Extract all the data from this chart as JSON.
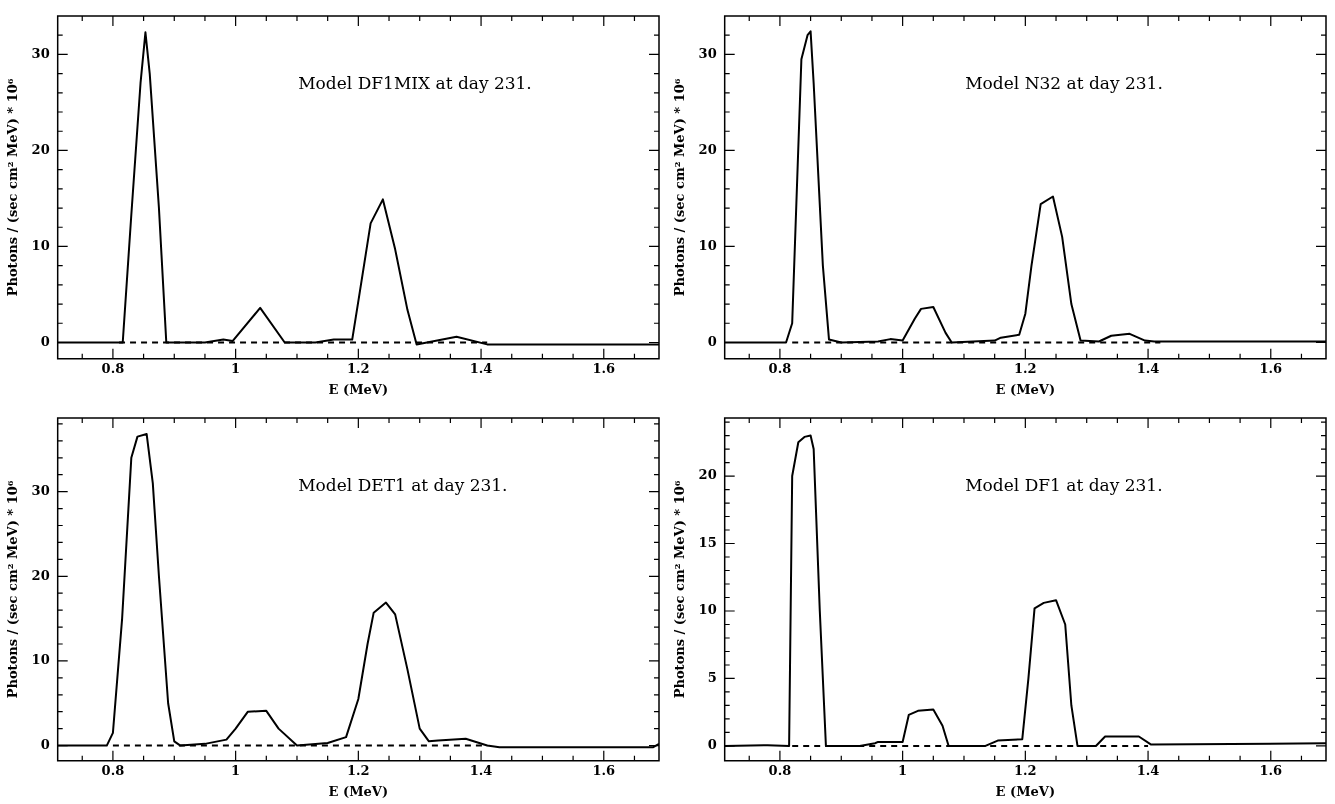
{
  "chart_data": [
    {
      "type": "line",
      "annotations": [
        "Model DF1MIX at day 231."
      ],
      "xlabel": "E (MeV)",
      "ylabel": "Photons / (sec cm² MeV) * 10⁶",
      "xlim": [
        0.71,
        1.69
      ],
      "ylim": [
        -1.7,
        34
      ],
      "xticks": [
        {
          "value": 0.75,
          "label": null
        },
        0.8,
        {
          "value": 0.85,
          "label": null
        },
        {
          "value": 0.9,
          "label": null
        },
        {
          "value": 0.95,
          "label": null
        },
        1,
        {
          "value": 1.05,
          "label": null
        },
        {
          "value": 1.1,
          "label": null
        },
        {
          "value": 1.15,
          "label": null
        },
        1.2,
        {
          "value": 1.25,
          "label": null
        },
        {
          "value": 1.3,
          "label": null
        },
        {
          "value": 1.35,
          "label": null
        },
        1.4,
        {
          "value": 1.45,
          "label": null
        },
        {
          "value": 1.5,
          "label": null
        },
        {
          "value": 1.55,
          "label": null
        },
        1.6,
        {
          "value": 1.65,
          "label": null
        }
      ],
      "yticks": [
        0,
        {
          "value": 2,
          "label": null
        },
        {
          "value": 4,
          "label": null
        },
        {
          "value": 6,
          "label": null
        },
        {
          "value": 8,
          "label": null
        },
        10,
        {
          "value": 12,
          "label": null
        },
        {
          "value": 14,
          "label": null
        },
        {
          "value": 16,
          "label": null
        },
        {
          "value": 18,
          "label": null
        },
        20,
        {
          "value": 22,
          "label": null
        },
        {
          "value": 24,
          "label": null
        },
        {
          "value": 26,
          "label": null
        },
        {
          "value": 28,
          "label": null
        },
        30,
        {
          "value": 32,
          "label": null
        }
      ],
      "series": [
        {
          "color": "#000000",
          "x": [
            0.71,
            0.816,
            0.83,
            0.845,
            0.853,
            0.86,
            0.875,
            0.887,
            0.95,
            0.98,
            0.995,
            1.04,
            1.08,
            1.13,
            1.16,
            1.19,
            1.2,
            1.22,
            1.24,
            1.26,
            1.28,
            1.295,
            1.36,
            1.41,
            1.69
          ],
          "values": [
            0,
            0,
            13.3,
            27,
            32.3,
            28,
            14,
            0,
            0,
            0.3,
            0.15,
            3.6,
            0,
            0,
            0.3,
            0.3,
            4.3,
            12.4,
            14.9,
            9.7,
            3.4,
            -0.2,
            0.6,
            -0.2,
            -0.2
          ]
        },
        {
          "color": "#000000",
          "line_style": "dashed",
          "x": [
            0.81,
            1.41
          ],
          "values": [
            0,
            0
          ]
        }
      ]
    },
    {
      "type": "line",
      "annotations": [
        "Model N32 at day 231."
      ],
      "xlabel": "E (MeV)",
      "ylabel": "Photons / (sec cm² MeV) * 10⁶",
      "xlim": [
        0.71,
        1.69
      ],
      "ylim": [
        -1.7,
        34
      ],
      "xticks": [
        {
          "value": 0.75,
          "label": null
        },
        0.8,
        {
          "value": 0.85,
          "label": null
        },
        {
          "value": 0.9,
          "label": null
        },
        {
          "value": 0.95,
          "label": null
        },
        1,
        {
          "value": 1.05,
          "label": null
        },
        {
          "value": 1.1,
          "label": null
        },
        {
          "value": 1.15,
          "label": null
        },
        1.2,
        {
          "value": 1.25,
          "label": null
        },
        {
          "value": 1.3,
          "label": null
        },
        {
          "value": 1.35,
          "label": null
        },
        1.4,
        {
          "value": 1.45,
          "label": null
        },
        {
          "value": 1.5,
          "label": null
        },
        {
          "value": 1.55,
          "label": null
        },
        1.6,
        {
          "value": 1.65,
          "label": null
        }
      ],
      "yticks": [
        0,
        {
          "value": 2,
          "label": null
        },
        {
          "value": 4,
          "label": null
        },
        {
          "value": 6,
          "label": null
        },
        {
          "value": 8,
          "label": null
        },
        10,
        {
          "value": 12,
          "label": null
        },
        {
          "value": 14,
          "label": null
        },
        {
          "value": 16,
          "label": null
        },
        {
          "value": 18,
          "label": null
        },
        20,
        {
          "value": 22,
          "label": null
        },
        {
          "value": 24,
          "label": null
        },
        {
          "value": 26,
          "label": null
        },
        {
          "value": 28,
          "label": null
        },
        30,
        {
          "value": 32,
          "label": null
        }
      ],
      "series": [
        {
          "color": "#000000",
          "x": [
            0.71,
            0.81,
            0.82,
            0.835,
            0.845,
            0.85,
            0.855,
            0.87,
            0.88,
            0.9,
            0.96,
            0.98,
            1.0,
            1.02,
            1.03,
            1.05,
            1.07,
            1.08,
            1.15,
            1.16,
            1.19,
            1.2,
            1.21,
            1.225,
            1.245,
            1.26,
            1.275,
            1.29,
            1.32,
            1.34,
            1.37,
            1.395,
            1.41,
            1.69
          ],
          "values": [
            0,
            0,
            2,
            29.5,
            32,
            32.4,
            27,
            8,
            0.3,
            0,
            0.1,
            0.35,
            0.2,
            2.5,
            3.5,
            3.7,
            1,
            0,
            0.2,
            0.5,
            0.8,
            3,
            8,
            14.4,
            15.2,
            11,
            4,
            0.2,
            0.1,
            0.7,
            0.9,
            0.2,
            0.1,
            0.1
          ]
        },
        {
          "color": "#000000",
          "line_style": "dashed",
          "x": [
            0.82,
            1.42
          ],
          "values": [
            0,
            0
          ]
        }
      ]
    },
    {
      "type": "line",
      "annotations": [
        "Model DET1 at day 231."
      ],
      "xlabel": "E (MeV)",
      "ylabel": "Photons / (sec cm² MeV) * 10⁶",
      "xlim": [
        0.71,
        1.69
      ],
      "ylim": [
        -1.8,
        38.7
      ],
      "xticks": [
        {
          "value": 0.75,
          "label": null
        },
        0.8,
        {
          "value": 0.85,
          "label": null
        },
        {
          "value": 0.9,
          "label": null
        },
        {
          "value": 0.95,
          "label": null
        },
        1,
        {
          "value": 1.05,
          "label": null
        },
        {
          "value": 1.1,
          "label": null
        },
        {
          "value": 1.15,
          "label": null
        },
        1.2,
        {
          "value": 1.25,
          "label": null
        },
        {
          "value": 1.3,
          "label": null
        },
        {
          "value": 1.35,
          "label": null
        },
        1.4,
        {
          "value": 1.45,
          "label": null
        },
        {
          "value": 1.5,
          "label": null
        },
        {
          "value": 1.55,
          "label": null
        },
        1.6,
        {
          "value": 1.65,
          "label": null
        }
      ],
      "yticks": [
        0,
        {
          "value": 2,
          "label": null
        },
        {
          "value": 4,
          "label": null
        },
        {
          "value": 6,
          "label": null
        },
        {
          "value": 8,
          "label": null
        },
        10,
        {
          "value": 12,
          "label": null
        },
        {
          "value": 14,
          "label": null
        },
        {
          "value": 16,
          "label": null
        },
        {
          "value": 18,
          "label": null
        },
        20,
        {
          "value": 22,
          "label": null
        },
        {
          "value": 24,
          "label": null
        },
        {
          "value": 26,
          "label": null
        },
        {
          "value": 28,
          "label": null
        },
        30,
        {
          "value": 32,
          "label": null
        },
        {
          "value": 34,
          "label": null
        },
        {
          "value": 36,
          "label": null
        },
        {
          "value": 38,
          "label": null
        }
      ],
      "series": [
        {
          "color": "#000000",
          "x": [
            0.71,
            0.79,
            0.8,
            0.815,
            0.83,
            0.84,
            0.855,
            0.865,
            0.875,
            0.89,
            0.9,
            0.91,
            0.95,
            0.985,
            1.0,
            1.02,
            1.05,
            1.07,
            1.1,
            1.15,
            1.18,
            1.2,
            1.215,
            1.225,
            1.245,
            1.26,
            1.28,
            1.3,
            1.315,
            1.33,
            1.375,
            1.41,
            1.43,
            1.68,
            1.69
          ],
          "values": [
            0,
            0,
            1.5,
            15,
            34,
            36.5,
            36.8,
            31,
            20,
            5,
            0.5,
            0,
            0.2,
            0.7,
            2,
            4,
            4.1,
            2,
            0,
            0.3,
            1,
            5.5,
            12,
            15.7,
            16.9,
            15.5,
            9,
            2,
            0.5,
            0.6,
            0.8,
            0,
            -0.2,
            -0.2,
            0.2
          ]
        },
        {
          "color": "#000000",
          "line_style": "dashed",
          "x": [
            0.8,
            1.41
          ],
          "values": [
            0,
            0
          ]
        }
      ]
    },
    {
      "type": "line",
      "annotations": [
        "Model DF1 at day 231."
      ],
      "xlabel": "E (MeV)",
      "ylabel": "Photons / (sec cm² MeV) * 10⁶",
      "xlim": [
        0.71,
        1.69
      ],
      "ylim": [
        -1.1,
        24.3
      ],
      "xticks": [
        {
          "value": 0.75,
          "label": null
        },
        0.8,
        {
          "value": 0.85,
          "label": null
        },
        {
          "value": 0.9,
          "label": null
        },
        {
          "value": 0.95,
          "label": null
        },
        1,
        {
          "value": 1.05,
          "label": null
        },
        {
          "value": 1.1,
          "label": null
        },
        {
          "value": 1.15,
          "label": null
        },
        1.2,
        {
          "value": 1.25,
          "label": null
        },
        {
          "value": 1.3,
          "label": null
        },
        {
          "value": 1.35,
          "label": null
        },
        1.4,
        {
          "value": 1.45,
          "label": null
        },
        {
          "value": 1.5,
          "label": null
        },
        {
          "value": 1.55,
          "label": null
        },
        1.6,
        {
          "value": 1.65,
          "label": null
        }
      ],
      "yticks": [
        0,
        {
          "value": 1,
          "label": null
        },
        {
          "value": 2,
          "label": null
        },
        {
          "value": 3,
          "label": null
        },
        {
          "value": 4,
          "label": null
        },
        5,
        {
          "value": 6,
          "label": null
        },
        {
          "value": 7,
          "label": null
        },
        {
          "value": 8,
          "label": null
        },
        {
          "value": 9,
          "label": null
        },
        10,
        {
          "value": 11,
          "label": null
        },
        {
          "value": 12,
          "label": null
        },
        {
          "value": 13,
          "label": null
        },
        {
          "value": 14,
          "label": null
        },
        15,
        {
          "value": 16,
          "label": null
        },
        {
          "value": 17,
          "label": null
        },
        {
          "value": 18,
          "label": null
        },
        {
          "value": 19,
          "label": null
        },
        20,
        {
          "value": 21,
          "label": null
        },
        {
          "value": 22,
          "label": null
        },
        {
          "value": 23,
          "label": null
        },
        {
          "value": 24,
          "label": null
        }
      ],
      "series": [
        {
          "color": "#000000",
          "x": [
            0.71,
            0.78,
            0.815,
            0.82,
            0.83,
            0.84,
            0.85,
            0.855,
            0.865,
            0.875,
            0.93,
            0.955,
            0.96,
            1.0,
            1.01,
            1.025,
            1.05,
            1.065,
            1.075,
            1.135,
            1.155,
            1.195,
            1.205,
            1.215,
            1.23,
            1.25,
            1.265,
            1.275,
            1.285,
            1.315,
            1.33,
            1.385,
            1.405,
            1.69
          ],
          "values": [
            0,
            0.05,
            0,
            20,
            22.5,
            22.9,
            23,
            22,
            10,
            0,
            0,
            0.2,
            0.3,
            0.3,
            2.3,
            2.6,
            2.7,
            1.5,
            0,
            0,
            0.4,
            0.5,
            5,
            10.2,
            10.6,
            10.8,
            9,
            3,
            0,
            0,
            0.7,
            0.7,
            0.1,
            0.2
          ]
        },
        {
          "color": "#000000",
          "line_style": "dashed",
          "x": [
            0.82,
            1.4
          ],
          "values": [
            0,
            0
          ]
        }
      ]
    }
  ]
}
